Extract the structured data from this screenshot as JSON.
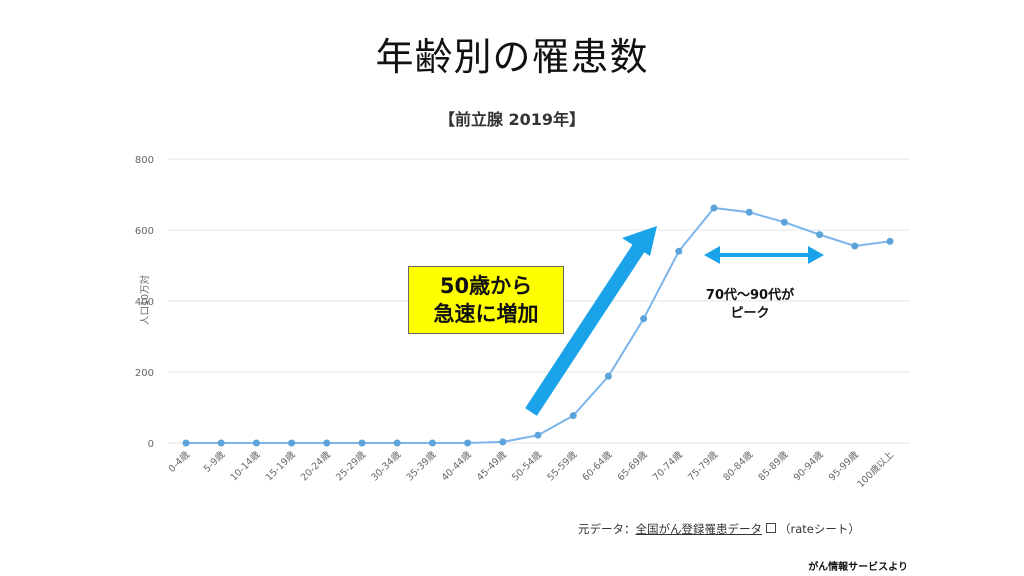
{
  "slide_title": "年齢別の罹患数",
  "chart_data": {
    "type": "line",
    "title": "【前立腺 2019年】",
    "ylabel": "人口10万対",
    "xlabel": "",
    "ylim": [
      0,
      800
    ],
    "yticks": [
      0,
      200,
      400,
      600,
      800
    ],
    "grid": true,
    "categories": [
      "0-4歳",
      "5-9歳",
      "10-14歳",
      "15-19歳",
      "20-24歳",
      "25-29歳",
      "30-34歳",
      "35-39歳",
      "40-44歳",
      "45-49歳",
      "50-54歳",
      "55-59歳",
      "60-64歳",
      "65-69歳",
      "70-74歳",
      "75-79歳",
      "80-84歳",
      "85-89歳",
      "90-94歳",
      "95-99歳",
      "100歳以上"
    ],
    "series": [
      {
        "values": [
          0,
          0,
          0,
          0,
          0,
          0,
          0,
          0,
          0,
          3,
          22,
          77,
          188,
          350,
          540,
          662,
          650,
          622,
          587,
          555,
          568
        ]
      }
    ],
    "line_color": "#7cb5ec",
    "point_color": "#5ba3d9"
  },
  "annotations": {
    "callout_line1": "50歳から",
    "callout_line2": "急速に増加",
    "peak_line1": "70代〜90代が",
    "peak_line2": "ピーク",
    "arrow_color": "#1aa3e8",
    "callout_bg": "#ffff00"
  },
  "source": {
    "prefix": "元データ：",
    "link_text": "全国がん登録罹患データ",
    "suffix": "（rateシート）"
  },
  "credit": "がん情報サービスより"
}
